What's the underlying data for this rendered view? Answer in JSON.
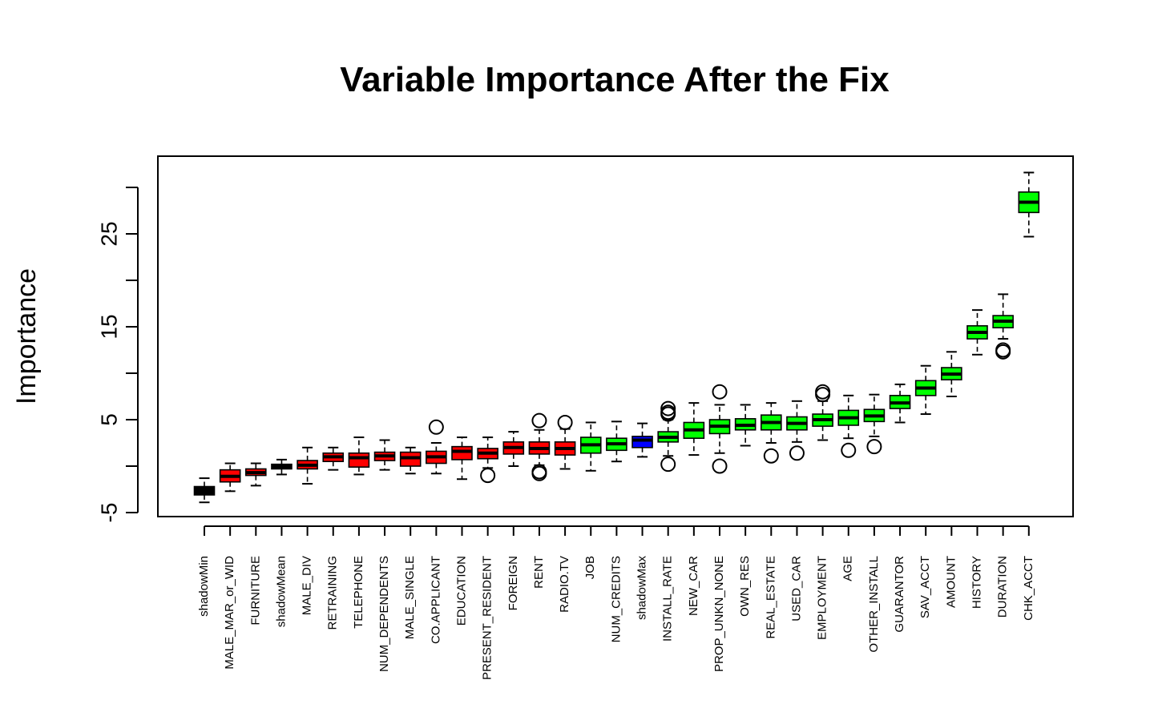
{
  "chart_data": {
    "type": "boxplot",
    "title": "Variable Importance After the Fix",
    "xlabel": "",
    "ylabel": "Importance",
    "ylim": [
      -5,
      32
    ],
    "yticks": [
      -5,
      0,
      5,
      10,
      15,
      20,
      25,
      30
    ],
    "ytick_labels": [
      "-5",
      "",
      "5",
      "",
      "15",
      "",
      "25",
      ""
    ],
    "grid": false,
    "legend": "none",
    "colors": {
      "shadow": "#000000",
      "rejected": "#FF0000",
      "shadowMax": "#0000FF",
      "confirmed": "#00FF00"
    },
    "boxes": [
      {
        "name": "shadowMin",
        "color": "#000000",
        "lower_whisker": -3.9,
        "q1": -3.1,
        "median": -2.5,
        "q3": -2.2,
        "upper_whisker": -1.3,
        "outliers": []
      },
      {
        "name": "MALE_MAR_or_WID",
        "color": "#FF0000",
        "lower_whisker": -2.7,
        "q1": -1.7,
        "median": -1.1,
        "q3": -0.4,
        "upper_whisker": 0.3,
        "outliers": []
      },
      {
        "name": "FURNITURE",
        "color": "#FF0000",
        "lower_whisker": -2.1,
        "q1": -1.0,
        "median": -0.7,
        "q3": -0.3,
        "upper_whisker": 0.3,
        "outliers": []
      },
      {
        "name": "shadowMean",
        "color": "#000000",
        "lower_whisker": -0.9,
        "q1": -0.3,
        "median": -0.1,
        "q3": 0.2,
        "upper_whisker": 0.7,
        "outliers": []
      },
      {
        "name": "MALE_DIV",
        "color": "#FF0000",
        "lower_whisker": -1.9,
        "q1": -0.3,
        "median": 0.1,
        "q3": 0.6,
        "upper_whisker": 2.0,
        "outliers": []
      },
      {
        "name": "RETRAINING",
        "color": "#FF0000",
        "lower_whisker": -0.4,
        "q1": 0.5,
        "median": 1.0,
        "q3": 1.4,
        "upper_whisker": 2.0,
        "outliers": []
      },
      {
        "name": "TELEPHONE",
        "color": "#FF0000",
        "lower_whisker": -0.9,
        "q1": -0.1,
        "median": 0.9,
        "q3": 1.4,
        "upper_whisker": 3.1,
        "outliers": []
      },
      {
        "name": "NUM_DEPENDENTS",
        "color": "#FF0000",
        "lower_whisker": -0.4,
        "q1": 0.6,
        "median": 1.1,
        "q3": 1.5,
        "upper_whisker": 2.8,
        "outliers": []
      },
      {
        "name": "MALE_SINGLE",
        "color": "#FF0000",
        "lower_whisker": -0.8,
        "q1": 0.0,
        "median": 0.9,
        "q3": 1.5,
        "upper_whisker": 2.0,
        "outliers": []
      },
      {
        "name": "CO.APPLICANT",
        "color": "#FF0000",
        "lower_whisker": -0.8,
        "q1": 0.3,
        "median": 1.0,
        "q3": 1.6,
        "upper_whisker": 2.5,
        "outliers": [
          4.2
        ]
      },
      {
        "name": "EDUCATION",
        "color": "#FF0000",
        "lower_whisker": -1.4,
        "q1": 0.7,
        "median": 1.6,
        "q3": 2.1,
        "upper_whisker": 3.1,
        "outliers": []
      },
      {
        "name": "PRESENT_RESIDENT",
        "color": "#FF0000",
        "lower_whisker": -0.2,
        "q1": 0.8,
        "median": 1.4,
        "q3": 1.9,
        "upper_whisker": 3.1,
        "outliers": [
          -1.0
        ]
      },
      {
        "name": "FOREIGN",
        "color": "#FF0000",
        "lower_whisker": 0.0,
        "q1": 1.3,
        "median": 2.0,
        "q3": 2.6,
        "upper_whisker": 3.7,
        "outliers": []
      },
      {
        "name": "RENT",
        "color": "#FF0000",
        "lower_whisker": 0.1,
        "q1": 1.3,
        "median": 1.9,
        "q3": 2.6,
        "upper_whisker": 3.9,
        "outliers": [
          4.9,
          -0.6,
          -0.8
        ]
      },
      {
        "name": "RADIO.TV",
        "color": "#FF0000",
        "lower_whisker": -0.3,
        "q1": 1.2,
        "median": 1.9,
        "q3": 2.6,
        "upper_whisker": 4.0,
        "outliers": [
          4.7
        ]
      },
      {
        "name": "JOB",
        "color": "#00FF00",
        "lower_whisker": -0.5,
        "q1": 1.4,
        "median": 2.3,
        "q3": 3.1,
        "upper_whisker": 4.7,
        "outliers": []
      },
      {
        "name": "NUM_CREDITS",
        "color": "#00FF00",
        "lower_whisker": 0.5,
        "q1": 1.7,
        "median": 2.4,
        "q3": 3.0,
        "upper_whisker": 4.8,
        "outliers": []
      },
      {
        "name": "shadowMax",
        "color": "#0000FF",
        "lower_whisker": 1.0,
        "q1": 2.0,
        "median": 2.8,
        "q3": 3.2,
        "upper_whisker": 4.6,
        "outliers": []
      },
      {
        "name": "INSTALL_RATE",
        "color": "#00FF00",
        "lower_whisker": 1.1,
        "q1": 2.6,
        "median": 3.1,
        "q3": 3.7,
        "upper_whisker": 5.0,
        "outliers": [
          6.2,
          5.8,
          5.6,
          0.2
        ]
      },
      {
        "name": "NEW_CAR",
        "color": "#00FF00",
        "lower_whisker": 1.2,
        "q1": 3.0,
        "median": 3.9,
        "q3": 4.7,
        "upper_whisker": 6.8,
        "outliers": []
      },
      {
        "name": "PROP_UNKN_NONE",
        "color": "#00FF00",
        "lower_whisker": 1.4,
        "q1": 3.5,
        "median": 4.3,
        "q3": 5.0,
        "upper_whisker": 6.6,
        "outliers": [
          8.0,
          0.0
        ]
      },
      {
        "name": "OWN_RES",
        "color": "#00FF00",
        "lower_whisker": 2.2,
        "q1": 3.9,
        "median": 4.4,
        "q3": 5.1,
        "upper_whisker": 6.6,
        "outliers": []
      },
      {
        "name": "REAL_ESTATE",
        "color": "#00FF00",
        "lower_whisker": 2.5,
        "q1": 3.9,
        "median": 4.7,
        "q3": 5.5,
        "upper_whisker": 6.8,
        "outliers": [
          1.1
        ]
      },
      {
        "name": "USED_CAR",
        "color": "#00FF00",
        "lower_whisker": 2.6,
        "q1": 3.9,
        "median": 4.6,
        "q3": 5.3,
        "upper_whisker": 7.0,
        "outliers": [
          1.4
        ]
      },
      {
        "name": "EMPLOYMENT",
        "color": "#00FF00",
        "lower_whisker": 2.8,
        "q1": 4.3,
        "median": 5.0,
        "q3": 5.6,
        "upper_whisker": 7.0,
        "outliers": [
          8.0,
          7.7
        ]
      },
      {
        "name": "AGE",
        "color": "#00FF00",
        "lower_whisker": 3.0,
        "q1": 4.4,
        "median": 5.2,
        "q3": 6.0,
        "upper_whisker": 7.6,
        "outliers": [
          1.7
        ]
      },
      {
        "name": "OTHER_INSTALL",
        "color": "#00FF00",
        "lower_whisker": 3.2,
        "q1": 4.8,
        "median": 5.4,
        "q3": 6.1,
        "upper_whisker": 7.7,
        "outliers": [
          2.1
        ]
      },
      {
        "name": "GUARANTOR",
        "color": "#00FF00",
        "lower_whisker": 4.7,
        "q1": 6.2,
        "median": 6.8,
        "q3": 7.6,
        "upper_whisker": 8.8,
        "outliers": []
      },
      {
        "name": "SAV_ACCT",
        "color": "#00FF00",
        "lower_whisker": 5.6,
        "q1": 7.6,
        "median": 8.4,
        "q3": 9.2,
        "upper_whisker": 10.8,
        "outliers": []
      },
      {
        "name": "AMOUNT",
        "color": "#00FF00",
        "lower_whisker": 7.5,
        "q1": 9.3,
        "median": 9.9,
        "q3": 10.6,
        "upper_whisker": 12.3,
        "outliers": []
      },
      {
        "name": "HISTORY",
        "color": "#00FF00",
        "lower_whisker": 12.0,
        "q1": 13.7,
        "median": 14.4,
        "q3": 15.1,
        "upper_whisker": 16.8,
        "outliers": []
      },
      {
        "name": "DURATION",
        "color": "#00FF00",
        "lower_whisker": 13.7,
        "q1": 14.9,
        "median": 15.6,
        "q3": 16.2,
        "upper_whisker": 18.5,
        "outliers": [
          12.5,
          12.3
        ]
      },
      {
        "name": "CHK_ACCT",
        "color": "#00FF00",
        "lower_whisker": 24.7,
        "q1": 27.3,
        "median": 28.4,
        "q3": 29.5,
        "upper_whisker": 31.6,
        "outliers": []
      }
    ]
  }
}
